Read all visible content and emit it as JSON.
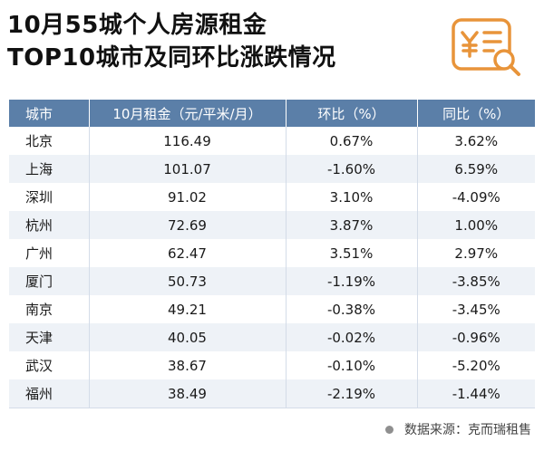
{
  "title": {
    "line1": "10月55城个人房源租金",
    "line2": "TOP10城市及同环比涨跌情况"
  },
  "logo": {
    "icon": "yen-document-magnifier-icon",
    "color": "#e8943a"
  },
  "table": {
    "headers": [
      "城市",
      "10月租金（元/平米/月）",
      "环比（%）",
      "同比（%）"
    ],
    "rows": [
      [
        "北京",
        "116.49",
        "0.67%",
        "3.62%"
      ],
      [
        "上海",
        "101.07",
        "-1.60%",
        "6.59%"
      ],
      [
        "深圳",
        "91.02",
        "3.10%",
        "-4.09%"
      ],
      [
        "杭州",
        "72.69",
        "3.87%",
        "1.00%"
      ],
      [
        "广州",
        "62.47",
        "3.51%",
        "2.97%"
      ],
      [
        "厦门",
        "50.73",
        "-1.19%",
        "-3.85%"
      ],
      [
        "南京",
        "49.21",
        "-0.38%",
        "-3.45%"
      ],
      [
        "天津",
        "40.05",
        "-0.02%",
        "-0.96%"
      ],
      [
        "武汉",
        "38.67",
        "-0.10%",
        "-5.20%"
      ],
      [
        "福州",
        "38.49",
        "-2.19%",
        "-1.44%"
      ]
    ]
  },
  "source": "数据来源：克而瑞租售",
  "colors": {
    "header_bg": "#5b7fa8",
    "stripe_bg": "#eef2f7"
  }
}
